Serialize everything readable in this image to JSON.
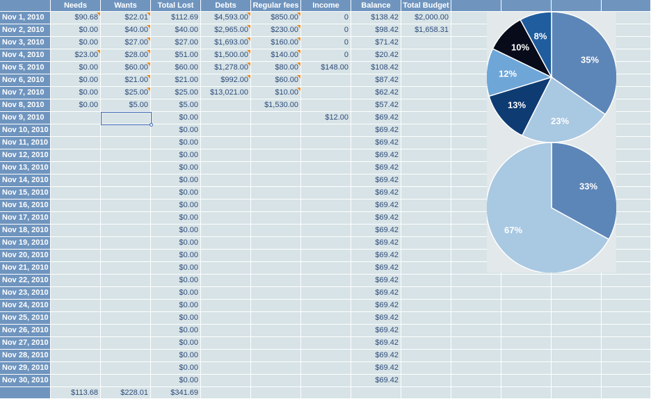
{
  "columns": [
    "Needs",
    "Wants",
    "Total Lost",
    "Debts",
    "Regular fees",
    "Income",
    "Balance",
    "Total Budget"
  ],
  "rows": [
    {
      "date": "Nov 1, 2010",
      "cells": [
        "$90.68",
        "$22.01",
        "$112.69",
        "$4,593.00",
        "$850.00",
        "0",
        "$138.42",
        "$2,000.00"
      ],
      "flags": [
        1,
        1,
        0,
        1,
        1,
        0,
        0,
        0
      ]
    },
    {
      "date": "Nov 2, 2010",
      "cells": [
        "$0.00",
        "$40.00",
        "$40.00",
        "$2,965.00",
        "$230.00",
        "0",
        "$98.42",
        "$1,658.31"
      ],
      "flags": [
        0,
        1,
        0,
        1,
        1,
        0,
        0,
        0
      ]
    },
    {
      "date": "Nov 3, 2010",
      "cells": [
        "$0.00",
        "$27.00",
        "$27.00",
        "$1,693.00",
        "$160.00",
        "0",
        "$71.42",
        ""
      ],
      "flags": [
        0,
        1,
        0,
        1,
        1,
        0,
        0,
        0
      ]
    },
    {
      "date": "Nov 4, 2010",
      "cells": [
        "$23.00",
        "$28.00",
        "$51.00",
        "$1,500.00",
        "$140.00",
        "0",
        "$20.42",
        ""
      ],
      "flags": [
        1,
        1,
        0,
        1,
        1,
        0,
        0,
        0
      ]
    },
    {
      "date": "Nov 5, 2010",
      "cells": [
        "$0.00",
        "$60.00",
        "$60.00",
        "$1,278.00",
        "$80.00",
        "$148.00",
        "$108.42",
        ""
      ],
      "flags": [
        0,
        1,
        0,
        1,
        1,
        0,
        0,
        0
      ]
    },
    {
      "date": "Nov 6, 2010",
      "cells": [
        "$0.00",
        "$21.00",
        "$21.00",
        "$992.00",
        "$60.00",
        "",
        "$87.42",
        ""
      ],
      "flags": [
        0,
        1,
        0,
        1,
        1,
        0,
        0,
        0
      ]
    },
    {
      "date": "Nov 7, 2010",
      "cells": [
        "$0.00",
        "$25.00",
        "$25.00",
        "$13,021.00",
        "$10.00",
        "",
        "$62.42",
        ""
      ],
      "flags": [
        0,
        1,
        0,
        0,
        1,
        0,
        0,
        0
      ]
    },
    {
      "date": "Nov 8, 2010",
      "cells": [
        "$0.00",
        "$5.00",
        "$5.00",
        "",
        "$1,530.00",
        "",
        "$57.42",
        ""
      ],
      "flags": [
        0,
        0,
        0,
        0,
        0,
        0,
        0,
        0
      ]
    },
    {
      "date": "Nov 9, 2010",
      "cells": [
        "",
        "",
        "$0.00",
        "",
        "",
        "$12.00",
        "$69.42",
        ""
      ],
      "flags": [
        0,
        0,
        0,
        0,
        0,
        0,
        0,
        0
      ]
    },
    {
      "date": "Nov 10, 2010",
      "cells": [
        "",
        "",
        "$0.00",
        "",
        "",
        "",
        "$69.42",
        ""
      ],
      "flags": [
        0,
        0,
        0,
        0,
        0,
        0,
        0,
        0
      ]
    },
    {
      "date": "Nov 11, 2010",
      "cells": [
        "",
        "",
        "$0.00",
        "",
        "",
        "",
        "$69.42",
        ""
      ],
      "flags": [
        0,
        0,
        0,
        0,
        0,
        0,
        0,
        0
      ]
    },
    {
      "date": "Nov 12, 2010",
      "cells": [
        "",
        "",
        "$0.00",
        "",
        "",
        "",
        "$69.42",
        ""
      ],
      "flags": [
        0,
        0,
        0,
        0,
        0,
        0,
        0,
        0
      ]
    },
    {
      "date": "Nov 13, 2010",
      "cells": [
        "",
        "",
        "$0.00",
        "",
        "",
        "",
        "$69.42",
        ""
      ],
      "flags": [
        0,
        0,
        0,
        0,
        0,
        0,
        0,
        0
      ]
    },
    {
      "date": "Nov 14, 2010",
      "cells": [
        "",
        "",
        "$0.00",
        "",
        "",
        "",
        "$69.42",
        ""
      ],
      "flags": [
        0,
        0,
        0,
        0,
        0,
        0,
        0,
        0
      ]
    },
    {
      "date": "Nov 15, 2010",
      "cells": [
        "",
        "",
        "$0.00",
        "",
        "",
        "",
        "$69.42",
        ""
      ],
      "flags": [
        0,
        0,
        0,
        0,
        0,
        0,
        0,
        0
      ]
    },
    {
      "date": "Nov 16, 2010",
      "cells": [
        "",
        "",
        "$0.00",
        "",
        "",
        "",
        "$69.42",
        ""
      ],
      "flags": [
        0,
        0,
        0,
        0,
        0,
        0,
        0,
        0
      ]
    },
    {
      "date": "Nov 17, 2010",
      "cells": [
        "",
        "",
        "$0.00",
        "",
        "",
        "",
        "$69.42",
        ""
      ],
      "flags": [
        0,
        0,
        0,
        0,
        0,
        0,
        0,
        0
      ]
    },
    {
      "date": "Nov 18, 2010",
      "cells": [
        "",
        "",
        "$0.00",
        "",
        "",
        "",
        "$69.42",
        ""
      ],
      "flags": [
        0,
        0,
        0,
        0,
        0,
        0,
        0,
        0
      ]
    },
    {
      "date": "Nov 19, 2010",
      "cells": [
        "",
        "",
        "$0.00",
        "",
        "",
        "",
        "$69.42",
        ""
      ],
      "flags": [
        0,
        0,
        0,
        0,
        0,
        0,
        0,
        0
      ]
    },
    {
      "date": "Nov 20, 2010",
      "cells": [
        "",
        "",
        "$0.00",
        "",
        "",
        "",
        "$69.42",
        ""
      ],
      "flags": [
        0,
        0,
        0,
        0,
        0,
        0,
        0,
        0
      ]
    },
    {
      "date": "Nov 21, 2010",
      "cells": [
        "",
        "",
        "$0.00",
        "",
        "",
        "",
        "$69.42",
        ""
      ],
      "flags": [
        0,
        0,
        0,
        0,
        0,
        0,
        0,
        0
      ]
    },
    {
      "date": "Nov 22, 2010",
      "cells": [
        "",
        "",
        "$0.00",
        "",
        "",
        "",
        "$69.42",
        ""
      ],
      "flags": [
        0,
        0,
        0,
        0,
        0,
        0,
        0,
        0
      ]
    },
    {
      "date": "Nov 23, 2010",
      "cells": [
        "",
        "",
        "$0.00",
        "",
        "",
        "",
        "$69.42",
        ""
      ],
      "flags": [
        0,
        0,
        0,
        0,
        0,
        0,
        0,
        0
      ]
    },
    {
      "date": "Nov 24, 2010",
      "cells": [
        "",
        "",
        "$0.00",
        "",
        "",
        "",
        "$69.42",
        ""
      ],
      "flags": [
        0,
        0,
        0,
        0,
        0,
        0,
        0,
        0
      ]
    },
    {
      "date": "Nov 25, 2010",
      "cells": [
        "",
        "",
        "$0.00",
        "",
        "",
        "",
        "$69.42",
        ""
      ],
      "flags": [
        0,
        0,
        0,
        0,
        0,
        0,
        0,
        0
      ]
    },
    {
      "date": "Nov 26, 2010",
      "cells": [
        "",
        "",
        "$0.00",
        "",
        "",
        "",
        "$69.42",
        ""
      ],
      "flags": [
        0,
        0,
        0,
        0,
        0,
        0,
        0,
        0
      ]
    },
    {
      "date": "Nov 27, 2010",
      "cells": [
        "",
        "",
        "$0.00",
        "",
        "",
        "",
        "$69.42",
        ""
      ],
      "flags": [
        0,
        0,
        0,
        0,
        0,
        0,
        0,
        0
      ]
    },
    {
      "date": "Nov 28, 2010",
      "cells": [
        "",
        "",
        "$0.00",
        "",
        "",
        "",
        "$69.42",
        ""
      ],
      "flags": [
        0,
        0,
        0,
        0,
        0,
        0,
        0,
        0
      ]
    },
    {
      "date": "Nov 29, 2010",
      "cells": [
        "",
        "",
        "$0.00",
        "",
        "",
        "",
        "$69.42",
        ""
      ],
      "flags": [
        0,
        0,
        0,
        0,
        0,
        0,
        0,
        0
      ]
    },
    {
      "date": "Nov 30, 2010",
      "cells": [
        "",
        "",
        "$0.00",
        "",
        "",
        "",
        "$69.42",
        ""
      ],
      "flags": [
        0,
        0,
        0,
        0,
        0,
        0,
        0,
        0
      ]
    }
  ],
  "totals": [
    "$113.68",
    "$228.01",
    "$341.69",
    "",
    "",
    "",
    "",
    ""
  ],
  "selection": {
    "row": 8,
    "column": 1
  },
  "colors": {
    "header": "#6f95bf",
    "cell": "#d7e3e6",
    "comment_flag": "#f28a1d",
    "selection": "#3a64b4"
  },
  "chart_data": [
    {
      "type": "pie",
      "slices": [
        {
          "label": "35%",
          "value": 35,
          "color": "#5d86b8"
        },
        {
          "label": "23%",
          "value": 23,
          "color": "#a9c8e2"
        },
        {
          "label": "13%",
          "value": 13,
          "color": "#0f3b73"
        },
        {
          "label": "12%",
          "value": 12,
          "color": "#6fa6d8"
        },
        {
          "label": "10%",
          "value": 10,
          "color": "#070b1a"
        },
        {
          "label": "8%",
          "value": 8,
          "color": "#1f5d9e"
        }
      ]
    },
    {
      "type": "pie",
      "slices": [
        {
          "label": "33%",
          "value": 33,
          "color": "#5d86b8"
        },
        {
          "label": "67%",
          "value": 67,
          "color": "#a9c8e2"
        }
      ]
    }
  ]
}
